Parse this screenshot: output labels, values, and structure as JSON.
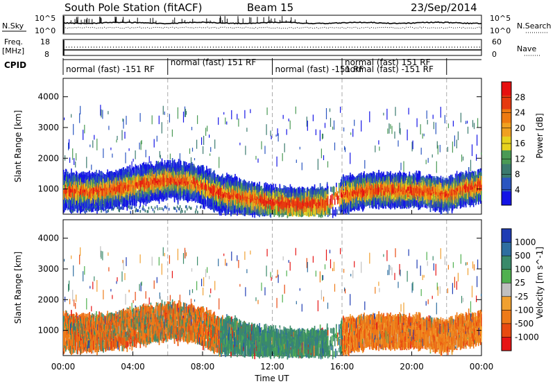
{
  "header": {
    "title": "South Pole Station (fitACF)",
    "beam": "Beam 15",
    "date": "23/Sep/2014"
  },
  "top_panels": {
    "nsky_label": "N.Sky",
    "nsky_ticks": [
      "10^5",
      "10^0"
    ],
    "nsearch_label": "N.Search",
    "nsearch_ticks": [
      "10^5",
      "10^0"
    ],
    "freq_label_1": "Freq.",
    "freq_label_2": "[MHz]",
    "freq_ticks": [
      "18",
      "8"
    ],
    "nave_label": "Nave",
    "nave_ticks": [
      "60",
      "0"
    ],
    "cpid_label": "CPID"
  },
  "cpid_segments": [
    {
      "start_h": 0,
      "end_h": 6,
      "label": "normal (fast) -151 RF"
    },
    {
      "start_h": 6,
      "end_h": 12,
      "label": "normal (fast) 151 RF"
    },
    {
      "start_h": 12,
      "end_h": 16,
      "label": "normal (fast) -151 RF"
    },
    {
      "start_h": 16,
      "end_h": 22,
      "label": "normal (fast) 151 RF"
    },
    {
      "start_h": 16,
      "end_h": 22,
      "label": "normal (fast) -151 RF"
    }
  ],
  "chart_data": [
    {
      "type": "heatmap",
      "name": "power",
      "ylabel": "Slant Range [km]",
      "xlim": [
        0,
        24
      ],
      "ylim": [
        180,
        4600
      ],
      "yticks": [
        "1000",
        "2000",
        "3000",
        "4000"
      ],
      "ytick_values": [
        1000,
        2000,
        3000,
        4000
      ],
      "colorbar": {
        "label": "Power [dB]",
        "ticks": [
          "4",
          "8",
          "12",
          "16",
          "20",
          "24",
          "28"
        ],
        "colors": [
          "#1414e6",
          "#2a55c0",
          "#3a7a6e",
          "#4a9a55",
          "#e6d21e",
          "#f0a020",
          "#ee7a10",
          "#e63a10",
          "#e61010"
        ]
      }
    },
    {
      "type": "heatmap",
      "name": "velocity",
      "ylabel": "Slant Range [km]",
      "xlabel": "Time UT",
      "xlim": [
        0,
        24
      ],
      "ylim": [
        180,
        4600
      ],
      "yticks": [
        "1000",
        "2000",
        "3000",
        "4000"
      ],
      "ytick_values": [
        1000,
        2000,
        3000,
        4000
      ],
      "xticks": [
        "00:00",
        "04:00",
        "08:00",
        "12:00",
        "16:00",
        "20:00",
        "00:00"
      ],
      "xtick_values": [
        0,
        4,
        8,
        12,
        16,
        20,
        24
      ],
      "colorbar": {
        "label": "Velocity [m s^-1]",
        "ticks": [
          "1000",
          "500",
          "100",
          "25",
          "-25",
          "-100",
          "-500",
          "-1000"
        ],
        "colors": [
          "#1e3cb4",
          "#2e6ea0",
          "#3a8a6a",
          "#4fb04f",
          "#c0c0c0",
          "#f0a030",
          "#ee7a18",
          "#e84a10",
          "#e61414"
        ]
      }
    }
  ]
}
